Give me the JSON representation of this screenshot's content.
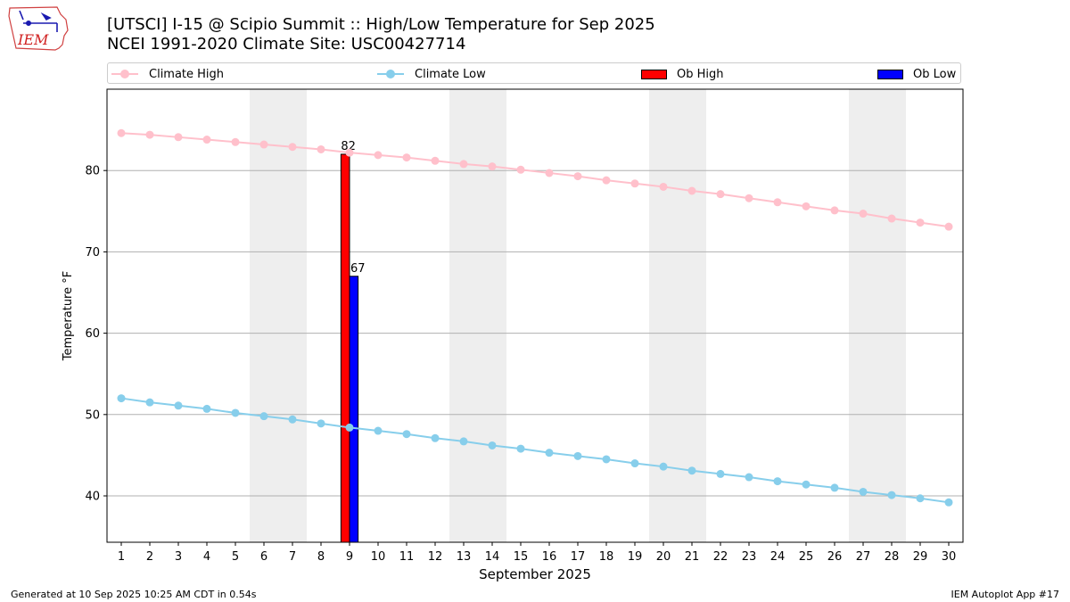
{
  "header": {
    "logo_text": "IEM",
    "title_line1": "[UTSCI] I-15 @ Scipio Summit  :: High/Low Temperature for Sep 2025",
    "title_line2": "NCEI 1991-2020 Climate Site: USC00427714"
  },
  "legend": {
    "climate_high": "Climate High",
    "climate_low": "Climate Low",
    "ob_high": "Ob High",
    "ob_low": "Ob Low"
  },
  "footer": {
    "generated": "Generated at 10 Sep 2025 10:25 AM CDT in 0.54s",
    "app": "IEM Autoplot App #17"
  },
  "colors": {
    "climate_high": "#ffc0cb",
    "climate_low": "#87ceeb",
    "ob_high": "#ff0000",
    "ob_low": "#0000ff",
    "weekend_shade": "#eeeeee"
  },
  "chart_data": {
    "type": "bar",
    "xlabel": "September 2025",
    "ylabel": "Temperature °F",
    "x": [
      1,
      2,
      3,
      4,
      5,
      6,
      7,
      8,
      9,
      10,
      11,
      12,
      13,
      14,
      15,
      16,
      17,
      18,
      19,
      20,
      21,
      22,
      23,
      24,
      25,
      26,
      27,
      28,
      29,
      30
    ],
    "xlim": [
      0.5,
      30.5
    ],
    "ylim": [
      34.3,
      90
    ],
    "yticks": [
      40,
      50,
      60,
      70,
      80
    ],
    "grid": "y",
    "legend_placement": "top",
    "shaded_ranges": [
      [
        5.5,
        7.5
      ],
      [
        12.5,
        14.5
      ],
      [
        19.5,
        21.5
      ],
      [
        26.5,
        28.5
      ]
    ],
    "series": [
      {
        "name": "Climate High",
        "kind": "line",
        "values": [
          84.6,
          84.4,
          84.1,
          83.8,
          83.5,
          83.2,
          82.9,
          82.6,
          82.2,
          81.9,
          81.6,
          81.2,
          80.8,
          80.5,
          80.1,
          79.7,
          79.3,
          78.8,
          78.4,
          78.0,
          77.5,
          77.1,
          76.6,
          76.1,
          75.6,
          75.1,
          74.7,
          74.1,
          73.6,
          73.1
        ]
      },
      {
        "name": "Climate Low",
        "kind": "line",
        "values": [
          52.0,
          51.5,
          51.1,
          50.7,
          50.2,
          49.8,
          49.4,
          48.9,
          48.4,
          48.0,
          47.6,
          47.1,
          46.7,
          46.2,
          45.8,
          45.3,
          44.9,
          44.5,
          44.0,
          43.6,
          43.1,
          42.7,
          42.3,
          41.8,
          41.4,
          41.0,
          40.5,
          40.1,
          39.7,
          39.2
        ]
      },
      {
        "name": "Ob High",
        "kind": "bar",
        "x": [
          9
        ],
        "values": [
          82
        ],
        "labels": [
          "82"
        ]
      },
      {
        "name": "Ob Low",
        "kind": "bar",
        "x": [
          9
        ],
        "values": [
          67
        ],
        "labels": [
          "67"
        ]
      }
    ]
  }
}
